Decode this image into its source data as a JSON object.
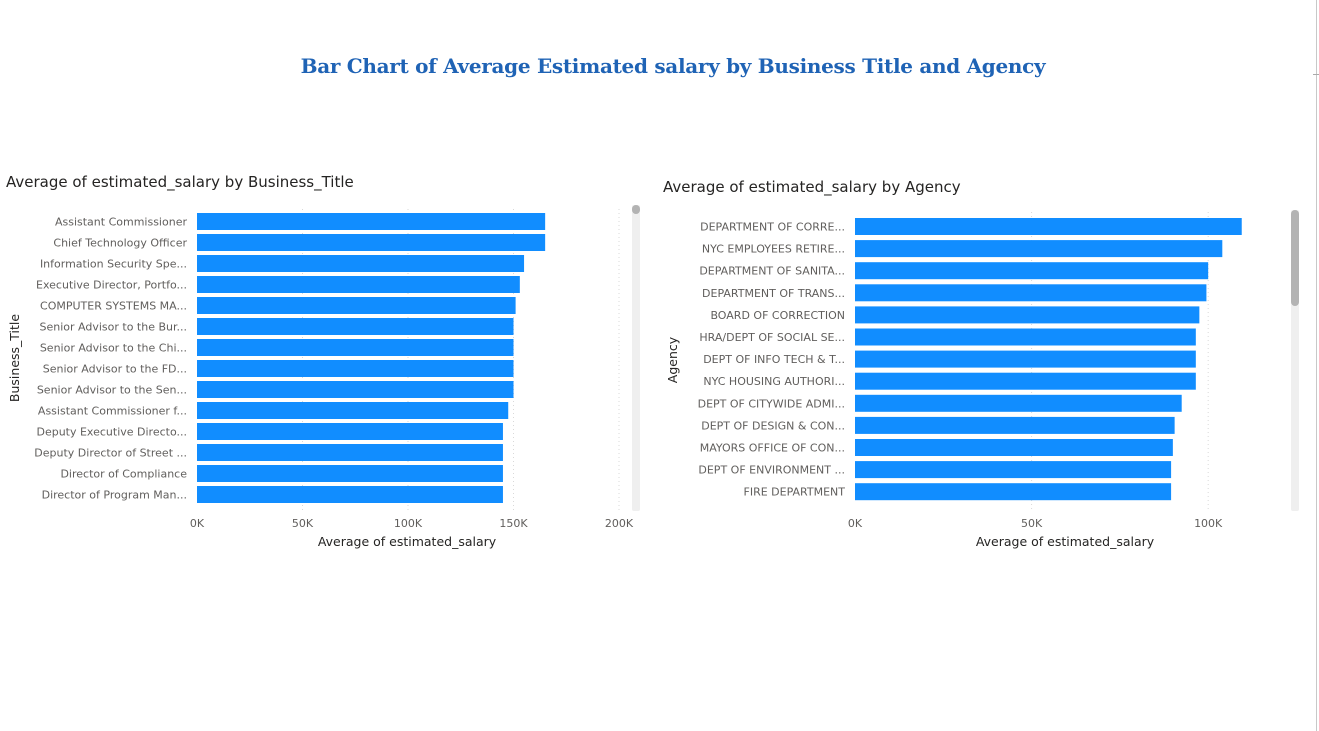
{
  "page": {
    "title": "Bar Chart of Average Estimated salary by Business Title and Agency"
  },
  "colors": {
    "bar": "#118dff",
    "gridline": "#d9d9d9",
    "title": "#1f63b5"
  },
  "chart_data": [
    {
      "type": "bar",
      "orientation": "horizontal",
      "title": "Average of estimated_salary by Business_Title",
      "xlabel": "Average of estimated_salary",
      "ylabel": "Business_Title",
      "xlim": [
        0,
        200000
      ],
      "xticks": [
        {
          "value": 0,
          "label": "0K"
        },
        {
          "value": 50000,
          "label": "50K"
        },
        {
          "value": 100000,
          "label": "100K"
        },
        {
          "value": 150000,
          "label": "150K"
        },
        {
          "value": 200000,
          "label": "200K"
        }
      ],
      "grid": true,
      "categories": [
        "Assistant Commissioner",
        "Chief Technology Officer",
        "Information Security Spe...",
        "Executive Director, Portfo...",
        "COMPUTER SYSTEMS MA...",
        "Senior Advisor to the Bur...",
        "Senior Advisor to the Chi...",
        "Senior Advisor to the FD...",
        "Senior Advisor to the Sen...",
        "Assistant Commissioner f...",
        "Deputy Executive Directo...",
        "Deputy Director of Street ...",
        "Director of Compliance",
        "Director of Program Man..."
      ],
      "values": [
        165000,
        165000,
        155000,
        153000,
        151000,
        150000,
        150000,
        150000,
        150000,
        147500,
        145000,
        145000,
        145000,
        145000
      ]
    },
    {
      "type": "bar",
      "orientation": "horizontal",
      "title": "Average of estimated_salary by Agency",
      "xlabel": "Average of estimated_salary",
      "ylabel": "Agency",
      "xlim": [
        0,
        110000
      ],
      "xticks": [
        {
          "value": 0,
          "label": "0K"
        },
        {
          "value": 50000,
          "label": "50K"
        },
        {
          "value": 100000,
          "label": "100K"
        }
      ],
      "grid": true,
      "categories": [
        "DEPARTMENT OF CORRE...",
        "NYC EMPLOYEES RETIRE...",
        "DEPARTMENT OF SANITA...",
        "DEPARTMENT OF TRANS...",
        "BOARD OF CORRECTION",
        "HRA/DEPT OF SOCIAL SE...",
        "DEPT OF INFO TECH & T...",
        "NYC HOUSING AUTHORI...",
        "DEPT OF CITYWIDE ADMI...",
        "DEPT OF DESIGN & CON...",
        "MAYORS OFFICE OF CON...",
        "DEPT OF ENVIRONMENT ...",
        "FIRE DEPARTMENT"
      ],
      "values": [
        109500,
        104000,
        100000,
        99500,
        97500,
        96500,
        96500,
        96500,
        92500,
        90500,
        90000,
        89500,
        89500
      ]
    }
  ]
}
